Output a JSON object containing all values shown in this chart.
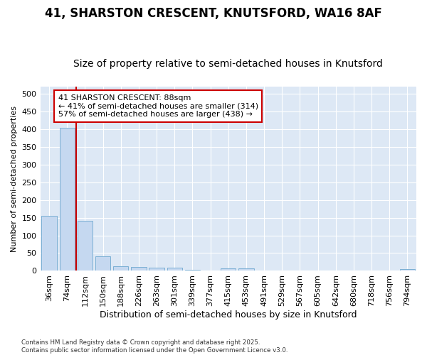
{
  "title_line1": "41, SHARSTON CRESCENT, KNUTSFORD, WA16 8AF",
  "title_line2": "Size of property relative to semi-detached houses in Knutsford",
  "xlabel": "Distribution of semi-detached houses by size in Knutsford",
  "ylabel": "Number of semi-detached properties",
  "categories": [
    "36sqm",
    "74sqm",
    "112sqm",
    "150sqm",
    "188sqm",
    "226sqm",
    "263sqm",
    "301sqm",
    "339sqm",
    "377sqm",
    "415sqm",
    "453sqm",
    "491sqm",
    "529sqm",
    "567sqm",
    "605sqm",
    "642sqm",
    "680sqm",
    "718sqm",
    "756sqm",
    "794sqm"
  ],
  "values": [
    155,
    403,
    142,
    40,
    12,
    11,
    9,
    8,
    2,
    0,
    7,
    7,
    0,
    0,
    0,
    0,
    0,
    0,
    0,
    0,
    4
  ],
  "bar_color": "#c5d8f0",
  "bar_edge_color": "#7bafd4",
  "vline_color": "#cc0000",
  "annotation_text": "41 SHARSTON CRESCENT: 88sqm\n← 41% of semi-detached houses are smaller (314)\n57% of semi-detached houses are larger (438) →",
  "annotation_box_facecolor": "#ffffff",
  "annotation_box_edgecolor": "#cc0000",
  "ylim": [
    0,
    520
  ],
  "yticks": [
    0,
    50,
    100,
    150,
    200,
    250,
    300,
    350,
    400,
    450,
    500
  ],
  "footer": "Contains HM Land Registry data © Crown copyright and database right 2025.\nContains public sector information licensed under the Open Government Licence v3.0.",
  "fig_facecolor": "#ffffff",
  "plot_bg_color": "#dde8f5",
  "grid_color": "#ffffff",
  "title_fontsize": 12,
  "subtitle_fontsize": 10,
  "tick_fontsize": 8,
  "xlabel_fontsize": 9,
  "ylabel_fontsize": 8
}
